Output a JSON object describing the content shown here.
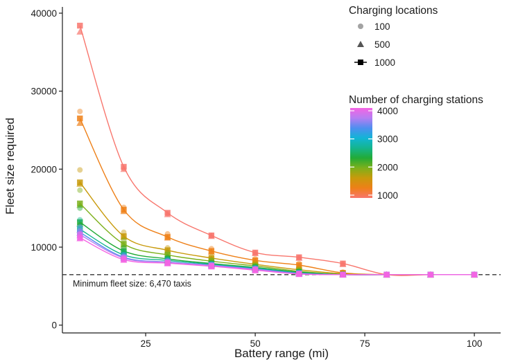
{
  "chart_data": {
    "type": "scatter",
    "xlabel": "Battery range (mi)",
    "ylabel": "Fleet size required",
    "xlim": [
      6,
      106
    ],
    "ylim": [
      -1000,
      40800
    ],
    "x_ticks": [
      25,
      50,
      75,
      100
    ],
    "y_ticks": [
      0,
      10000,
      20000,
      30000,
      40000
    ],
    "grid": false,
    "x": [
      10,
      20,
      30,
      40,
      50,
      60,
      70,
      80,
      90,
      100
    ],
    "reference_line": {
      "y": 6470,
      "label": "Minimum fleet size: 6,470 taxis",
      "style": "dashed"
    },
    "legend_shape": {
      "title": "Charging locations",
      "items": [
        {
          "label": "100",
          "shape": "circle"
        },
        {
          "label": "500",
          "shape": "triangle"
        },
        {
          "label": "1000",
          "shape": "square"
        }
      ]
    },
    "legend_color": {
      "title": "Number of charging stations",
      "ticks": [
        "1000",
        "2000",
        "3000",
        "4000"
      ],
      "tick_values": [
        1000,
        2000,
        3000,
        4000
      ],
      "range": [
        900,
        4100
      ],
      "gradient": [
        "#f8766d",
        "#ee8018",
        "#c89a0b",
        "#7db01b",
        "#22ab36",
        "#14b58f",
        "#12b5d6",
        "#4f8ef0",
        "#b67ef2",
        "#f564e3"
      ]
    },
    "series": [
      {
        "stations": 1000,
        "color": "#f8766d",
        "sq": [
          38400,
          20300,
          14400,
          11500,
          9300,
          8700,
          7900,
          6470,
          6470,
          6470
        ],
        "tr": [
          37600,
          20000,
          14200,
          11400,
          9200,
          8600,
          7800,
          6470,
          6470,
          6470
        ],
        "ci": [
          null,
          20100,
          14300,
          11500,
          9300,
          8700,
          7900,
          6470,
          6470,
          6470
        ]
      },
      {
        "stations": 1500,
        "color": "#ee8018",
        "sq": [
          26500,
          14800,
          11300,
          9500,
          8300,
          7700,
          6700,
          6470,
          6470,
          6470
        ],
        "tr": [
          25900,
          14600,
          11200,
          9400,
          8200,
          7600,
          6600,
          6470,
          6470,
          6470
        ],
        "ci": [
          27400,
          15100,
          11700,
          9800,
          8500,
          7900,
          6800,
          6470,
          6470,
          6470
        ]
      },
      {
        "stations": 2000,
        "color": "#c89a0b",
        "sq": [
          18300,
          11400,
          9600,
          8600,
          7800,
          7100,
          6600,
          6470,
          6470,
          6470
        ],
        "tr": [
          18100,
          11300,
          9500,
          8500,
          7700,
          7000,
          6550,
          6470,
          6470,
          6470
        ],
        "ci": [
          19900,
          11900,
          9900,
          8800,
          8000,
          7300,
          6700,
          6470,
          6470,
          6470
        ]
      },
      {
        "stations": 2250,
        "color": "#7db01b",
        "sq": [
          15600,
          10400,
          9000,
          8200,
          7600,
          6900,
          6500,
          6470,
          6470,
          6470
        ],
        "tr": [
          15400,
          10300,
          8900,
          8100,
          7500,
          6850,
          6500,
          6470,
          6470,
          6470
        ],
        "ci": [
          17300,
          10900,
          9300,
          8400,
          7700,
          7100,
          6600,
          6470,
          6470,
          6470
        ]
      },
      {
        "stations": 2500,
        "color": "#22ab36",
        "sq": [
          13200,
          9500,
          8500,
          7900,
          7400,
          6800,
          6480,
          6470,
          6470,
          6470
        ],
        "tr": [
          13000,
          9400,
          8400,
          7850,
          7350,
          6750,
          6480,
          6470,
          6470,
          6470
        ],
        "ci": [
          15000,
          9900,
          8700,
          8000,
          7500,
          6900,
          6550,
          6470,
          6470,
          6470
        ]
      },
      {
        "stations": 3000,
        "color": "#14b58f",
        "sq": [
          12300,
          9000,
          8300,
          7800,
          7300,
          6700,
          6470,
          6470,
          6470,
          6470
        ],
        "tr": [
          12200,
          8950,
          8250,
          7750,
          7250,
          6650,
          6470,
          6470,
          6470,
          6470
        ],
        "ci": [
          13500,
          9400,
          8500,
          7900,
          7400,
          6800,
          6500,
          6470,
          6470,
          6470
        ]
      },
      {
        "stations": 3500,
        "color": "#4f8ef0",
        "sq": [
          11900,
          8700,
          8100,
          7700,
          7200,
          6650,
          6470,
          6470,
          6470,
          6470
        ],
        "tr": [
          11800,
          8650,
          8050,
          7650,
          7150,
          6600,
          6470,
          6470,
          6470,
          6470
        ],
        "ci": [
          12600,
          9000,
          8300,
          7800,
          7300,
          6700,
          6480,
          6470,
          6470,
          6470
        ]
      },
      {
        "stations": 3750,
        "color": "#b67ef2",
        "sq": [
          11600,
          8600,
          8050,
          7650,
          7150,
          6600,
          6470,
          6470,
          6470,
          6470
        ],
        "tr": [
          11500,
          8550,
          8000,
          7600,
          7100,
          6580,
          6470,
          6470,
          6470,
          6470
        ],
        "ci": [
          12100,
          8800,
          8200,
          7700,
          7250,
          6650,
          6470,
          6470,
          6470,
          6470
        ]
      },
      {
        "stations": 4000,
        "color": "#f564e3",
        "sq": [
          11200,
          8400,
          7950,
          7550,
          7050,
          6550,
          6470,
          6470,
          6470,
          6470
        ],
        "tr": [
          11100,
          8350,
          7900,
          7500,
          7000,
          6530,
          6470,
          6470,
          6470,
          6470
        ],
        "ci": [
          11700,
          8600,
          8050,
          7600,
          7150,
          6600,
          6470,
          6470,
          6470,
          6470
        ]
      }
    ]
  }
}
